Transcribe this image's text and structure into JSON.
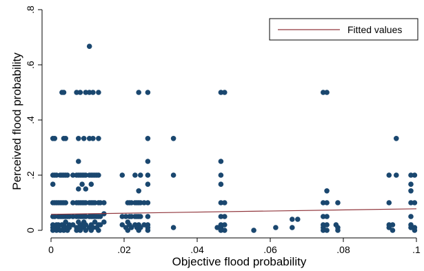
{
  "chart_data": {
    "type": "scatter",
    "title": "",
    "xlabel": "Objective flood probability",
    "ylabel": "Perceived flood probability",
    "xlim": [
      0,
      0.1
    ],
    "ylim": [
      0,
      0.8
    ],
    "x_ticks": [
      0,
      0.02,
      0.04,
      0.06,
      0.08,
      0.1
    ],
    "x_tick_labels": [
      "0",
      ".02",
      ".04",
      ".06",
      ".08",
      ".1"
    ],
    "y_ticks": [
      0,
      0.2,
      0.4,
      0.6,
      0.8
    ],
    "y_tick_labels": [
      "0",
      ".2",
      ".4",
      ".6",
      ".8"
    ],
    "grid": false,
    "legend": {
      "position": "top-right",
      "entries": [
        "Fitted values"
      ]
    },
    "colors": {
      "points": "#1a476f",
      "fit": "#90353b",
      "axes": "#000000"
    },
    "series": [
      {
        "kind": "scatter",
        "points": [
          [
            0.0005,
            0.333
          ],
          [
            0.0005,
            0.2
          ],
          [
            0.0005,
            0.1
          ],
          [
            0.0005,
            0.05
          ],
          [
            0.0005,
            0.02
          ],
          [
            0.0005,
            0.01
          ],
          [
            0.0005,
            0.0
          ],
          [
            0.0005,
            0.167
          ],
          [
            0.001,
            0.333
          ],
          [
            0.001,
            0.2
          ],
          [
            0.001,
            0.1
          ],
          [
            0.001,
            0.05
          ],
          [
            0.001,
            0.01
          ],
          [
            0.0015,
            0.2
          ],
          [
            0.0015,
            0.1
          ],
          [
            0.0015,
            0.02
          ],
          [
            0.0015,
            0.0
          ],
          [
            0.002,
            0.1
          ],
          [
            0.002,
            0.05
          ],
          [
            0.002,
            0.02
          ],
          [
            0.002,
            0.01
          ],
          [
            0.0025,
            0.2
          ],
          [
            0.0025,
            0.05
          ],
          [
            0.0025,
            0.0
          ],
          [
            0.0025,
            0.1
          ],
          [
            0.003,
            0.5
          ],
          [
            0.003,
            0.2
          ],
          [
            0.003,
            0.1
          ],
          [
            0.003,
            0.05
          ],
          [
            0.003,
            0.02
          ],
          [
            0.0035,
            0.5
          ],
          [
            0.0035,
            0.333
          ],
          [
            0.0035,
            0.2
          ],
          [
            0.0035,
            0.1
          ],
          [
            0.0035,
            0.05
          ],
          [
            0.0035,
            0.02
          ],
          [
            0.0035,
            0.01
          ],
          [
            0.0035,
            0.0
          ],
          [
            0.004,
            0.333
          ],
          [
            0.004,
            0.2
          ],
          [
            0.004,
            0.1
          ],
          [
            0.004,
            0.05
          ],
          [
            0.004,
            0.03
          ],
          [
            0.004,
            0.01
          ],
          [
            0.0045,
            0.2
          ],
          [
            0.0045,
            0.05
          ],
          [
            0.0045,
            0.01
          ],
          [
            0.0045,
            0.0
          ],
          [
            0.005,
            0.05
          ],
          [
            0.005,
            0.02
          ],
          [
            0.005,
            0.01
          ],
          [
            0.006,
            0.2
          ],
          [
            0.006,
            0.1
          ],
          [
            0.006,
            0.05
          ],
          [
            0.006,
            0.02
          ],
          [
            0.007,
            0.5
          ],
          [
            0.007,
            0.2
          ],
          [
            0.007,
            0.1
          ],
          [
            0.007,
            0.05
          ],
          [
            0.007,
            0.01
          ],
          [
            0.007,
            0.0
          ],
          [
            0.0075,
            0.333
          ],
          [
            0.0075,
            0.25
          ],
          [
            0.0075,
            0.2
          ],
          [
            0.0075,
            0.15
          ],
          [
            0.0075,
            0.1
          ],
          [
            0.0075,
            0.05
          ],
          [
            0.0075,
            0.03
          ],
          [
            0.0075,
            0.01
          ],
          [
            0.008,
            0.5
          ],
          [
            0.008,
            0.2
          ],
          [
            0.008,
            0.1
          ],
          [
            0.008,
            0.05
          ],
          [
            0.008,
            0.02
          ],
          [
            0.008,
            0.01
          ],
          [
            0.008,
            0.0
          ],
          [
            0.0085,
            0.2
          ],
          [
            0.0085,
            0.167
          ],
          [
            0.0085,
            0.1
          ],
          [
            0.0085,
            0.05
          ],
          [
            0.0085,
            0.02
          ],
          [
            0.009,
            0.333
          ],
          [
            0.009,
            0.2
          ],
          [
            0.009,
            0.1
          ],
          [
            0.009,
            0.05
          ],
          [
            0.009,
            0.03
          ],
          [
            0.009,
            0.01
          ],
          [
            0.0095,
            0.5
          ],
          [
            0.0095,
            0.2
          ],
          [
            0.0095,
            0.15
          ],
          [
            0.0095,
            0.1
          ],
          [
            0.0095,
            0.05
          ],
          [
            0.0095,
            0.02
          ],
          [
            0.0095,
            0.0
          ],
          [
            0.0105,
            0.667
          ],
          [
            0.0105,
            0.5
          ],
          [
            0.0105,
            0.333
          ],
          [
            0.0105,
            0.2
          ],
          [
            0.0105,
            0.1
          ],
          [
            0.0105,
            0.05
          ],
          [
            0.0105,
            0.01
          ],
          [
            0.011,
            0.2
          ],
          [
            0.011,
            0.167
          ],
          [
            0.011,
            0.1
          ],
          [
            0.011,
            0.05
          ],
          [
            0.011,
            0.02
          ],
          [
            0.011,
            0.0
          ],
          [
            0.0115,
            0.5
          ],
          [
            0.0115,
            0.333
          ],
          [
            0.0115,
            0.2
          ],
          [
            0.0115,
            0.1
          ],
          [
            0.0115,
            0.05
          ],
          [
            0.0115,
            0.01
          ],
          [
            0.012,
            0.2
          ],
          [
            0.012,
            0.1
          ],
          [
            0.012,
            0.05
          ],
          [
            0.012,
            0.03
          ],
          [
            0.0125,
            0.2
          ],
          [
            0.0125,
            0.05
          ],
          [
            0.0125,
            0.01
          ],
          [
            0.013,
            0.5
          ],
          [
            0.013,
            0.333
          ],
          [
            0.013,
            0.2
          ],
          [
            0.013,
            0.1
          ],
          [
            0.013,
            0.05
          ],
          [
            0.013,
            0.02
          ],
          [
            0.013,
            0.0
          ],
          [
            0.0135,
            0.1
          ],
          [
            0.0135,
            0.05
          ],
          [
            0.0135,
            0.02
          ],
          [
            0.0145,
            0.1
          ],
          [
            0.0145,
            0.06
          ],
          [
            0.0145,
            0.03
          ],
          [
            0.0195,
            0.2
          ],
          [
            0.0195,
            0.05
          ],
          [
            0.0195,
            0.02
          ],
          [
            0.0205,
            0.05
          ],
          [
            0.0205,
            0.01
          ],
          [
            0.021,
            0.1
          ],
          [
            0.021,
            0.03
          ],
          [
            0.021,
            0.0
          ],
          [
            0.0215,
            0.1
          ],
          [
            0.0215,
            0.05
          ],
          [
            0.0215,
            0.02
          ],
          [
            0.022,
            0.1
          ],
          [
            0.022,
            0.05
          ],
          [
            0.022,
            0.01
          ],
          [
            0.023,
            0.2
          ],
          [
            0.023,
            0.1
          ],
          [
            0.023,
            0.05
          ],
          [
            0.023,
            0.02
          ],
          [
            0.0235,
            0.1
          ],
          [
            0.0235,
            0.05
          ],
          [
            0.0235,
            0.01
          ],
          [
            0.024,
            0.5
          ],
          [
            0.024,
            0.143
          ],
          [
            0.024,
            0.1
          ],
          [
            0.024,
            0.05
          ],
          [
            0.024,
            0.02
          ],
          [
            0.024,
            0.01
          ],
          [
            0.024,
            0.0
          ],
          [
            0.0245,
            0.2
          ],
          [
            0.0245,
            0.1
          ],
          [
            0.0245,
            0.05
          ],
          [
            0.0245,
            0.01
          ],
          [
            0.0255,
            0.1
          ],
          [
            0.0255,
            0.02
          ],
          [
            0.0265,
            0.5
          ],
          [
            0.0265,
            0.333
          ],
          [
            0.0265,
            0.25
          ],
          [
            0.0265,
            0.2
          ],
          [
            0.0265,
            0.167
          ],
          [
            0.0265,
            0.1
          ],
          [
            0.0265,
            0.05
          ],
          [
            0.0265,
            0.02
          ],
          [
            0.0265,
            0.01
          ],
          [
            0.0265,
            0.0
          ],
          [
            0.0335,
            0.333
          ],
          [
            0.0335,
            0.2
          ],
          [
            0.0335,
            0.01
          ],
          [
            0.0465,
            0.5
          ],
          [
            0.0465,
            0.25
          ],
          [
            0.0465,
            0.2
          ],
          [
            0.0465,
            0.167
          ],
          [
            0.0465,
            0.1
          ],
          [
            0.0465,
            0.05
          ],
          [
            0.0465,
            0.02
          ],
          [
            0.0465,
            0.01
          ],
          [
            0.0465,
            0.0
          ],
          [
            0.0475,
            0.5
          ],
          [
            0.0475,
            0.1
          ],
          [
            0.0475,
            0.05
          ],
          [
            0.0475,
            0.02
          ],
          [
            0.0475,
            0.0
          ],
          [
            0.0455,
            0.01
          ],
          [
            0.0555,
            0.0
          ],
          [
            0.0615,
            0.01
          ],
          [
            0.066,
            0.04
          ],
          [
            0.066,
            0.01
          ],
          [
            0.0675,
            0.04
          ],
          [
            0.0745,
            0.5
          ],
          [
            0.0745,
            0.1
          ],
          [
            0.0745,
            0.05
          ],
          [
            0.0745,
            0.02
          ],
          [
            0.0745,
            0.01
          ],
          [
            0.0745,
            0.0
          ],
          [
            0.0755,
            0.5
          ],
          [
            0.0755,
            0.143
          ],
          [
            0.0755,
            0.1
          ],
          [
            0.0755,
            0.05
          ],
          [
            0.0755,
            0.02
          ],
          [
            0.0755,
            0.0
          ],
          [
            0.078,
            0.02
          ],
          [
            0.0785,
            0.1
          ],
          [
            0.0785,
            0.0
          ],
          [
            0.0785,
            0.01
          ],
          [
            0.0925,
            0.2
          ],
          [
            0.0925,
            0.1
          ],
          [
            0.0925,
            0.02
          ],
          [
            0.0925,
            0.01
          ],
          [
            0.0935,
            0.02
          ],
          [
            0.0935,
            0.0
          ],
          [
            0.0945,
            0.333
          ],
          [
            0.0945,
            0.2
          ],
          [
            0.0985,
            0.2
          ],
          [
            0.0985,
            0.167
          ],
          [
            0.0985,
            0.143
          ],
          [
            0.0985,
            0.1
          ],
          [
            0.0985,
            0.05
          ],
          [
            0.0985,
            0.02
          ],
          [
            0.0985,
            0.01
          ],
          [
            0.0995,
            0.2
          ],
          [
            0.0995,
            0.1
          ],
          [
            0.0995,
            0.01
          ],
          [
            0.0995,
            0.0
          ]
        ]
      },
      {
        "kind": "line",
        "name": "Fitted values",
        "x": [
          0,
          0.1
        ],
        "y": [
          0.058,
          0.078
        ]
      }
    ]
  }
}
